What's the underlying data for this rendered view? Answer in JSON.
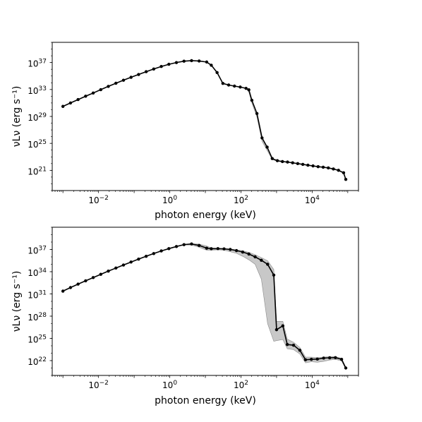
{
  "chart_data": [
    {
      "type": "line",
      "title": "",
      "xlabel": "photon energy (keV)",
      "ylabel": "νLν (erg s⁻¹)",
      "x_scale": "log",
      "y_scale": "log",
      "xlim": [
        0.0005,
        200000
      ],
      "ylim": [
        1e+18,
        1e+40
      ],
      "x_ticks": [
        {
          "value": 0.01,
          "base": "10",
          "exp": "−2"
        },
        {
          "value": 1,
          "base": "10",
          "exp": "0"
        },
        {
          "value": 100,
          "base": "10",
          "exp": "2"
        },
        {
          "value": 10000,
          "base": "10",
          "exp": "4"
        }
      ],
      "y_ticks": [
        {
          "value": 1e+21,
          "base": "10",
          "exp": "21"
        },
        {
          "value": 1e+25,
          "base": "10",
          "exp": "25"
        },
        {
          "value": 1e+29,
          "base": "10",
          "exp": "29"
        },
        {
          "value": 1e+33,
          "base": "10",
          "exp": "33"
        },
        {
          "value": 1e+37,
          "base": "10",
          "exp": "37"
        }
      ],
      "grid": false,
      "series": [
        {
          "x": [
            0.001,
            0.00163,
            0.00266,
            0.00434,
            0.00708,
            0.01155,
            0.01884,
            0.03073,
            0.05012,
            0.08176,
            0.1334,
            0.2175,
            0.3548,
            0.5788,
            0.9441,
            1.54,
            2.512,
            4.097,
            6.683,
            10.9,
            14.68,
            21.35,
            31.05,
            45.16,
            65.68,
            95.53,
            138.9,
            166.8,
            202.3,
            281.2,
            391,
            543.7,
            756,
            1051,
            1462,
            2032,
            2826,
            3929,
            5463,
            7596,
            10563,
            14687,
            20422,
            28397,
            39486,
            54905,
            76346,
            88000
          ],
          "y": [
            3.1e+30,
            1e+31,
            3.2e+31,
            1e+32,
            3e+32,
            9.5e+32,
            2.9e+33,
            8.5e+33,
            2.4e+34,
            6.5e+34,
            1.7e+35,
            4.4e+35,
            1.1e+36,
            2.6e+36,
            5.5e+36,
            1e+37,
            1.6e+37,
            1.9e+37,
            1.7e+37,
            1.2e+37,
            4e+36,
            3.3e+35,
            8e+33,
            4.6e+33,
            3.2e+33,
            2.3e+33,
            1.5e+33,
            9e+32,
            2.5e+31,
            2.7e+29,
            6.5e+25,
            2.8e+24,
            5.6e+22,
            2.7e+22,
            2e+22,
            1.7e+22,
            1.3e+22,
            1e+22,
            7.7e+21,
            5.8e+21,
            4.5e+21,
            3.5e+21,
            2.9e+21,
            2.3e+21,
            1.6e+21,
            1e+21,
            4.3e+20,
            4.5e+19
          ],
          "band_upper": [
            3.1e+30,
            1e+31,
            3.2e+31,
            1e+32,
            3e+32,
            9.5e+32,
            2.9e+33,
            8.5e+33,
            2.4e+34,
            6.5e+34,
            1.7e+35,
            4.4e+35,
            1.1e+36,
            2.6e+36,
            5.5e+36,
            1e+37,
            1.6e+37,
            1.9e+37,
            1.7e+37,
            1.2e+37,
            4e+36,
            3.3e+35,
            8e+33,
            4.6e+33,
            3.2e+33,
            2.3e+33,
            1.5e+33,
            9e+32,
            2.5e+31,
            2.7e+29,
            6.5e+25,
            2.8e+24,
            5.6e+22,
            2.7e+22,
            2e+22,
            1.7e+22,
            1.3e+22,
            1e+22,
            7.7e+21,
            5.8e+21,
            4.5e+21,
            3.5e+21,
            2.9e+21,
            2.3e+21,
            1.6e+21,
            1e+21,
            4.3e+20,
            4.5e+19
          ],
          "band_lower": [
            3.1e+30,
            1e+31,
            3.2e+31,
            1e+32,
            3e+32,
            9.5e+32,
            2.9e+33,
            8.5e+33,
            2.4e+34,
            6.5e+34,
            1.7e+35,
            4.4e+35,
            1.1e+36,
            2.6e+36,
            5.5e+36,
            1e+37,
            1.6e+37,
            1.9e+37,
            1.7e+37,
            1.2e+37,
            4e+36,
            3.3e+35,
            8e+33,
            4.6e+33,
            3.2e+33,
            2.3e+33,
            1.5e+33,
            4e+32,
            1e+31,
            8e+28,
            2e+25,
            9e+23,
            4e+22,
            2.2e+22,
            1.8e+22,
            1.5e+22,
            1.2e+22,
            9.5e+21,
            7.2e+21,
            5.5e+21,
            4.3e+21,
            3.4e+21,
            2.8e+21,
            2.2e+21,
            1.5e+21,
            9.5e+20,
            4e+20,
            4.2e+19
          ]
        }
      ]
    },
    {
      "type": "line",
      "title": "",
      "xlabel": "photon energy (keV)",
      "ylabel": "νLν (erg s⁻¹)",
      "x_scale": "log",
      "y_scale": "log",
      "xlim": [
        0.0005,
        200000
      ],
      "ylim": [
        1e+20,
        1e+40
      ],
      "x_ticks": [
        {
          "value": 0.01,
          "base": "10",
          "exp": "−2"
        },
        {
          "value": 1,
          "base": "10",
          "exp": "0"
        },
        {
          "value": 100,
          "base": "10",
          "exp": "2"
        },
        {
          "value": 10000,
          "base": "10",
          "exp": "4"
        }
      ],
      "y_ticks": [
        {
          "value": 1e+22,
          "base": "10",
          "exp": "22"
        },
        {
          "value": 1e+25,
          "base": "10",
          "exp": "25"
        },
        {
          "value": 1e+28,
          "base": "10",
          "exp": "28"
        },
        {
          "value": 1e+31,
          "base": "10",
          "exp": "31"
        },
        {
          "value": 1e+34,
          "base": "10",
          "exp": "34"
        },
        {
          "value": 1e+37,
          "base": "10",
          "exp": "37"
        }
      ],
      "grid": false,
      "series": [
        {
          "x": [
            0.001,
            0.00163,
            0.00266,
            0.00434,
            0.00708,
            0.01155,
            0.01884,
            0.03073,
            0.05012,
            0.08176,
            0.1334,
            0.2175,
            0.3548,
            0.5788,
            0.9441,
            1.54,
            2.512,
            4.097,
            6.683,
            10.9,
            14.68,
            22.5,
            33.5,
            50.1,
            74.9,
            112,
            167,
            250,
            374,
            560,
            836,
            1000,
            1500,
            2000,
            3000,
            4500,
            6500,
            9500,
            14000,
            21000,
            31000,
            45000,
            67000,
            88000
          ],
          "y": [
            2.4e+31,
            7.2e+31,
            2.1e+32,
            5.9e+32,
            1.6e+33,
            4.4e+33,
            1.2e+34,
            3.1e+34,
            8e+34,
            2e+35,
            5e+35,
            1.2e+36,
            2.8e+36,
            6.3e+36,
            1.3e+37,
            2.5e+37,
            4.5e+37,
            5.5e+37,
            3.5e+37,
            1.5e+37,
            1.25e+37,
            1.3e+37,
            1.2e+37,
            1e+37,
            7e+36,
            4.5e+36,
            2.4e+36,
            1e+36,
            3.5e+35,
            1e+35,
            3.5e+33,
            1.5e+26,
            5e+26,
            1.5e+24,
            1.2e+24,
            2.5e+23,
            1.3e+22,
            1.5e+22,
            1.6e+22,
            2.2e+22,
            2.4e+22,
            2.5e+22,
            1.5e+22,
            1e+21
          ],
          "band_upper": [
            2.4e+31,
            7.2e+31,
            2.1e+32,
            5.9e+32,
            1.6e+33,
            4.4e+33,
            1.2e+34,
            3.1e+34,
            8e+34,
            2e+35,
            5e+35,
            1.2e+36,
            2.8e+36,
            6.3e+36,
            1.3e+37,
            2.5e+37,
            4.5e+37,
            5.8e+37,
            5.2e+37,
            3e+37,
            1.6e+37,
            1.4e+37,
            1.3e+37,
            1.2e+37,
            9e+36,
            6.5e+36,
            4e+36,
            2e+36,
            8e+35,
            3e+35,
            2e+34,
            2e+27,
            2e+27,
            8e+24,
            3e+24,
            6e+23,
            3e+22,
            3e+22,
            2.5e+22,
            3e+22,
            3.5e+22,
            3.5e+22,
            2e+22,
            1.2e+21
          ],
          "band_lower": [
            2.4e+31,
            7.2e+31,
            2.1e+32,
            5.9e+32,
            1.6e+33,
            4.4e+33,
            1.2e+34,
            3.1e+34,
            8e+34,
            2e+35,
            5e+35,
            1.2e+36,
            2.8e+36,
            6.3e+36,
            1.3e+37,
            2.5e+37,
            4e+37,
            4e+37,
            2e+37,
            8e+36,
            8e+36,
            9e+36,
            8e+36,
            5e+36,
            3e+36,
            1.2e+36,
            4e+35,
            1e+35,
            1e+33,
            1e+27,
            4e+24,
            5e+24,
            7e+24,
            4e+23,
            3e+23,
            8e+22,
            5e+21,
            7e+21,
            6e+21,
            8e+21,
            1.2e+22,
            1.5e+22,
            9e+21,
            7e+20
          ]
        }
      ]
    }
  ],
  "colors": {
    "line": "#000000",
    "band": "#c8c8c8",
    "band_edge": "#8a8a8a"
  }
}
